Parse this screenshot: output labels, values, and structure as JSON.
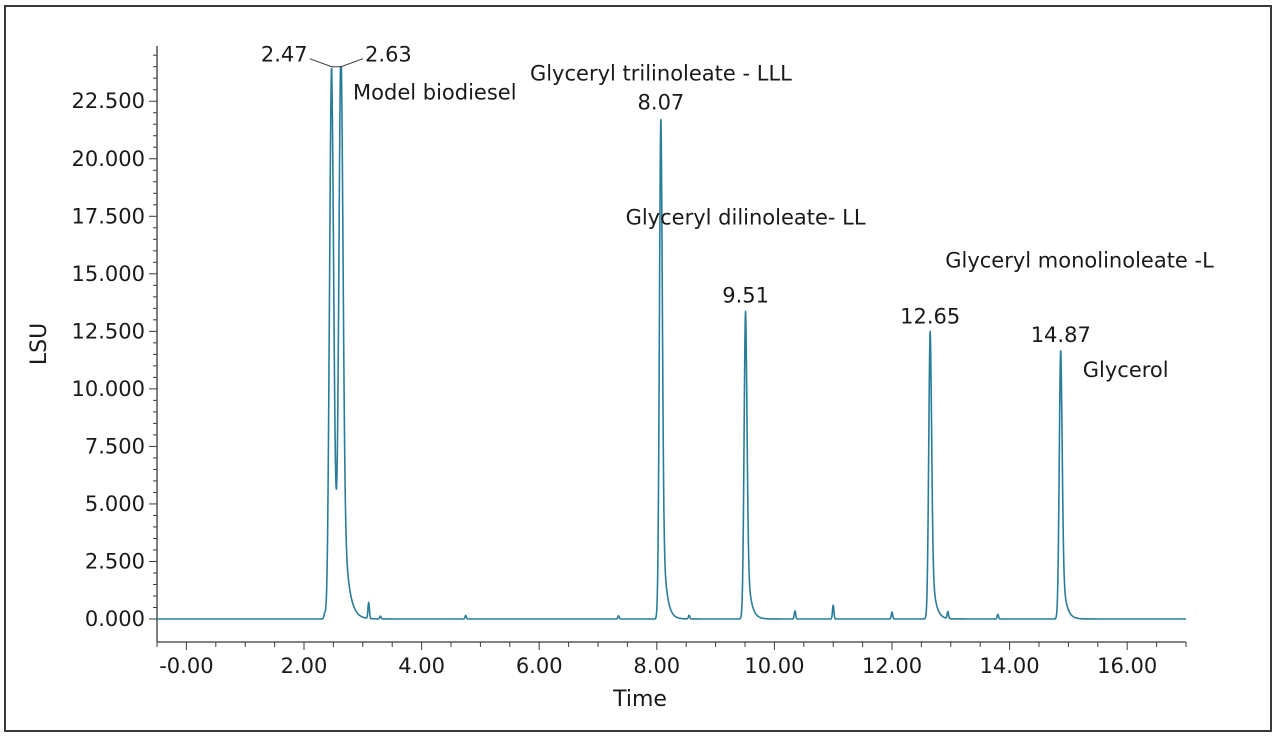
{
  "chart_data": {
    "type": "line",
    "xlabel": "Time",
    "ylabel": "LSU",
    "xlim": [
      -0.5,
      17.0
    ],
    "ylim": [
      -1000,
      24900
    ],
    "x_ticks": [
      "-0.00",
      "2.00",
      "4.00",
      "6.00",
      "8.00",
      "10.00",
      "12.00",
      "14.00",
      "16.00"
    ],
    "x_tick_values": [
      0,
      2,
      4,
      6,
      8,
      10,
      12,
      14,
      16
    ],
    "y_ticks": [
      "0.000",
      "2.500",
      "5.000",
      "7.500",
      "10.000",
      "12.500",
      "15.000",
      "17.500",
      "20.000",
      "22.500"
    ],
    "y_tick_values": [
      0,
      2500,
      5000,
      7500,
      10000,
      12500,
      15000,
      17500,
      20000,
      22500
    ],
    "grid": false,
    "line_color": "#2a7d99",
    "baseline": 0,
    "peaks": [
      {
        "rt": 2.47,
        "label": "2.47",
        "height": 24000,
        "type": "saturated"
      },
      {
        "rt": 2.63,
        "label": "2.63",
        "height": 24000,
        "type": "saturated"
      },
      {
        "rt": 8.07,
        "label": "8.07",
        "height": 21800
      },
      {
        "rt": 9.51,
        "label": "9.51",
        "height": 13400
      },
      {
        "rt": 12.65,
        "label": "12.65",
        "height": 12500
      },
      {
        "rt": 14.87,
        "label": "14.87",
        "height": 11700
      }
    ],
    "minor_peaks": [
      {
        "rt": 2.35,
        "height": 200
      },
      {
        "rt": 2.42,
        "height": 500
      },
      {
        "rt": 3.1,
        "height": 700
      },
      {
        "rt": 3.3,
        "height": 120
      },
      {
        "rt": 4.75,
        "height": 150
      },
      {
        "rt": 7.35,
        "height": 140
      },
      {
        "rt": 8.55,
        "height": 160
      },
      {
        "rt": 10.35,
        "height": 350
      },
      {
        "rt": 11.0,
        "height": 600
      },
      {
        "rt": 12.0,
        "height": 300
      },
      {
        "rt": 12.95,
        "height": 300
      },
      {
        "rt": 13.8,
        "height": 200
      }
    ],
    "annotations": [
      {
        "text": "Model biodiesel",
        "rt": 2.63
      },
      {
        "text": "Glyceryl trilinoleate - LLL",
        "rt": 8.07
      },
      {
        "text": "Glyceryl dilinoleate- LL",
        "rt": 9.51
      },
      {
        "text": "Glyceryl monolinoleate -L",
        "rt": 12.65
      },
      {
        "text": "Glycerol",
        "rt": 14.87
      }
    ]
  }
}
